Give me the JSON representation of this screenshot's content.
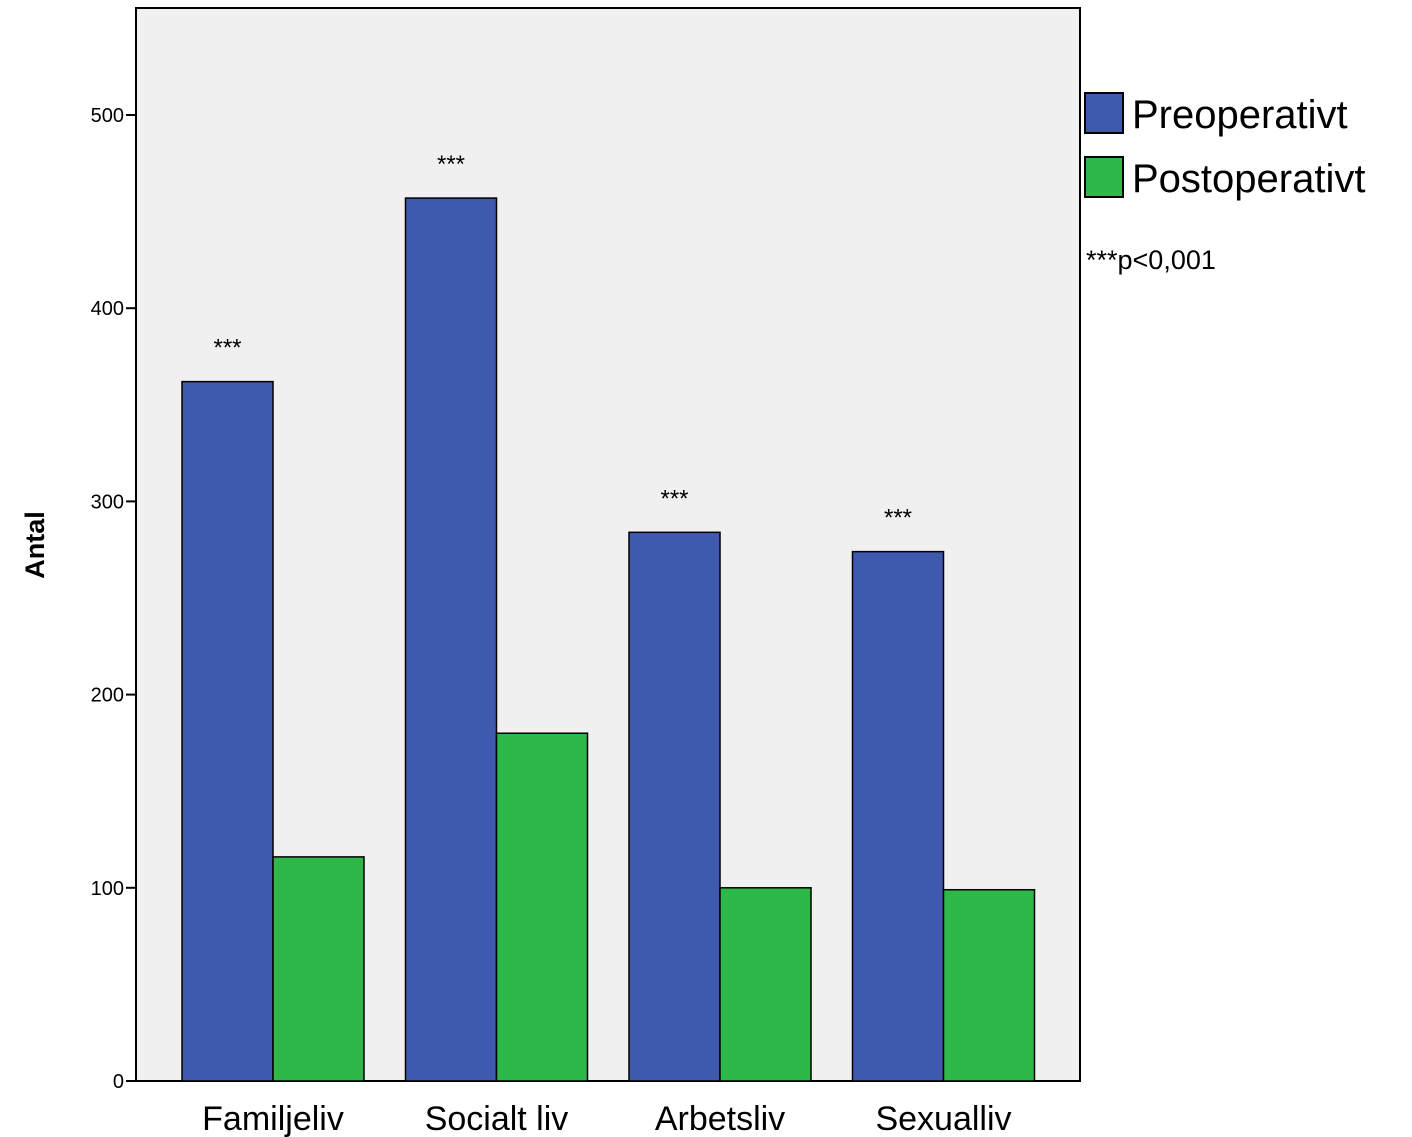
{
  "chart_data": {
    "type": "bar",
    "title": "",
    "xlabel": "",
    "ylabel": "Antal",
    "categories": [
      "Familjeliv",
      "Socialt liv",
      "Arbetsliv",
      "Sexualliv"
    ],
    "series": [
      {
        "name": "Preoperativt",
        "color": "#3f59ae",
        "values": [
          362,
          457,
          284,
          274
        ]
      },
      {
        "name": "Postoperativt",
        "color": "#2fb84a",
        "values": [
          116,
          180,
          100,
          99
        ]
      }
    ],
    "yticks": [
      0,
      100,
      200,
      300,
      400,
      500
    ],
    "ylim": [
      0,
      550
    ],
    "significance": [
      "***",
      "***",
      "***",
      "***"
    ],
    "note": "***p<0,001",
    "legend_position": "right",
    "grid": false,
    "plot_background": "#f0f0f0"
  }
}
